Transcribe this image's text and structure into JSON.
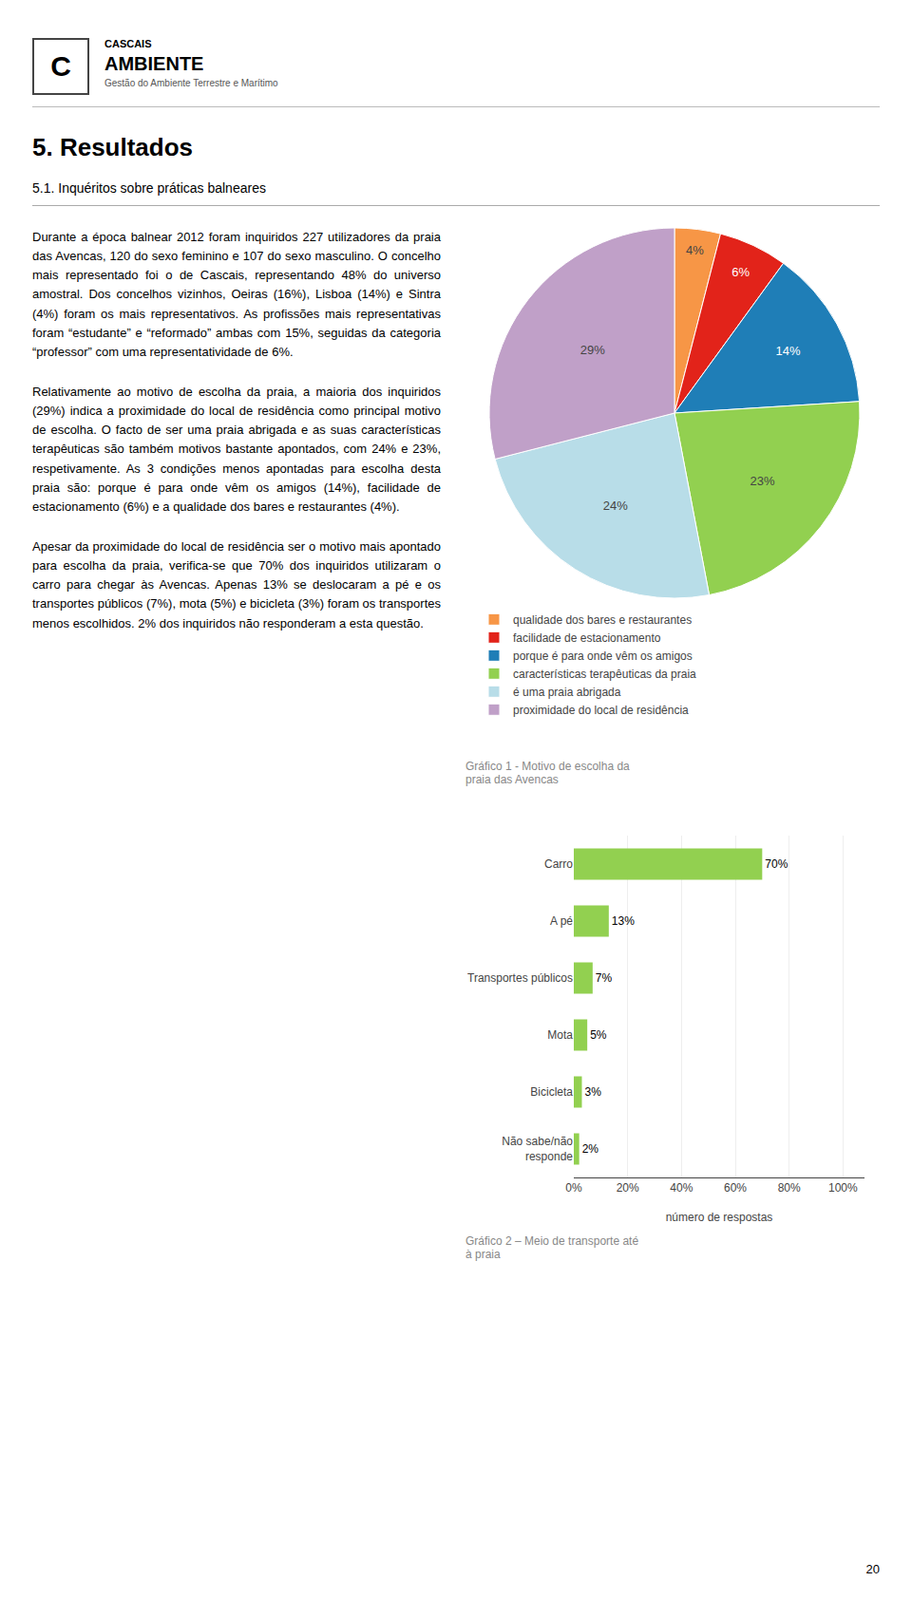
{
  "chart_data": [
    {
      "type": "pie",
      "title": "Gráfico 1 - Motivo de escolha da\npraia das Avencas",
      "categories": [
        "qualidade dos bares e restaurantes",
        "facilidade de estacionamento",
        "porque é para onde vêm os amigos",
        "características terapêuticas da praia",
        "é uma praia abrigada",
        "proximidade do local de residência"
      ],
      "values": [
        4,
        6,
        14,
        23,
        24,
        29
      ],
      "value_labels": [
        "4%",
        "6%",
        "14%",
        "23%",
        "24%",
        "29%"
      ],
      "colors": [
        "#f79646",
        "#e2231a",
        "#1f7eb7",
        "#92d050",
        "#b8dde8",
        "#c0a0c8"
      ],
      "data_labels": true,
      "legend": "bottom",
      "annotations": [
        "C",
        "CASCAIS",
        "AMBIENTE",
        "Gestão do Ambiente Terrestre e Marítimo",
        "5.  Resultados",
        "5.1.   Inquéritos sobre práticas balneares",
        "Durante a época balnear 2012 foram inquiridos 227 utilizadores da praia das Avencas, 120 do sexo feminino e 107 do sexo masculino. O concelho mais representado foi o de Cascais, representando 48% do universo amostral. Dos concelhos vizinhos, Oeiras (16%), Lisboa (14%) e Sintra (4%) foram os mais  representativos.   As  profissões  mais representativas foram “estudante” e “reformado” ambas com  15%,  seguidas  da  categoria “professor” com uma representatividade de 6%.",
        "Relativamente ao motivo de escolha da praia, a maioria dos inquiridos (29%) indica a proximidade do local de residência como principal motivo de escolha. O facto de ser uma praia abrigada e as suas características terapêuticas são também motivos bastante apontados, com 24% e 23%, respetivamente. As 3 condições menos apontadas para escolha desta praia são: porque é para onde vêm  os  amigos  (14%),  facilidade  de estacionamento (6%) e a qualidade dos bares e restaurantes (4%).",
        "Apesar da proximidade do local de residência ser o motivo mais apontado para escolha da praia, verifica-se que 70% dos inquiridos utilizaram o carro para chegar às Avencas. Apenas 13% se deslocaram a pé e os transportes públicos (7%), mota (5%) e bicicleta (3%) foram os transportes menos  escolhidos.  2%  dos  inquiridos  não responderam a esta questão.",
        "20"
      ]
    },
    {
      "type": "bar",
      "orientation": "horizontal",
      "title": "Gráfico 2 – Meio de transporte até\nà praia",
      "categories": [
        "Carro",
        "A pé",
        "Transportes públicos",
        "Mota",
        "Bicicleta",
        "Não sabe/não\nresponde"
      ],
      "values": [
        70,
        13,
        7,
        5,
        3,
        2
      ],
      "value_labels": [
        "70%",
        "13%",
        "7%",
        "5%",
        "3%",
        "2%"
      ],
      "data_labels": true,
      "color": "#92d050",
      "xlabel": "número de respostas",
      "xlim": [
        0,
        108
      ],
      "xticks": [
        {
          "value": 0,
          "label": "0%"
        },
        {
          "value": 20,
          "label": "20%"
        },
        {
          "value": 40,
          "label": "40%"
        },
        {
          "value": 60,
          "label": "60%"
        },
        {
          "value": 80,
          "label": "80%"
        },
        {
          "value": 100,
          "label": "100%"
        }
      ],
      "grid": true
    }
  ]
}
